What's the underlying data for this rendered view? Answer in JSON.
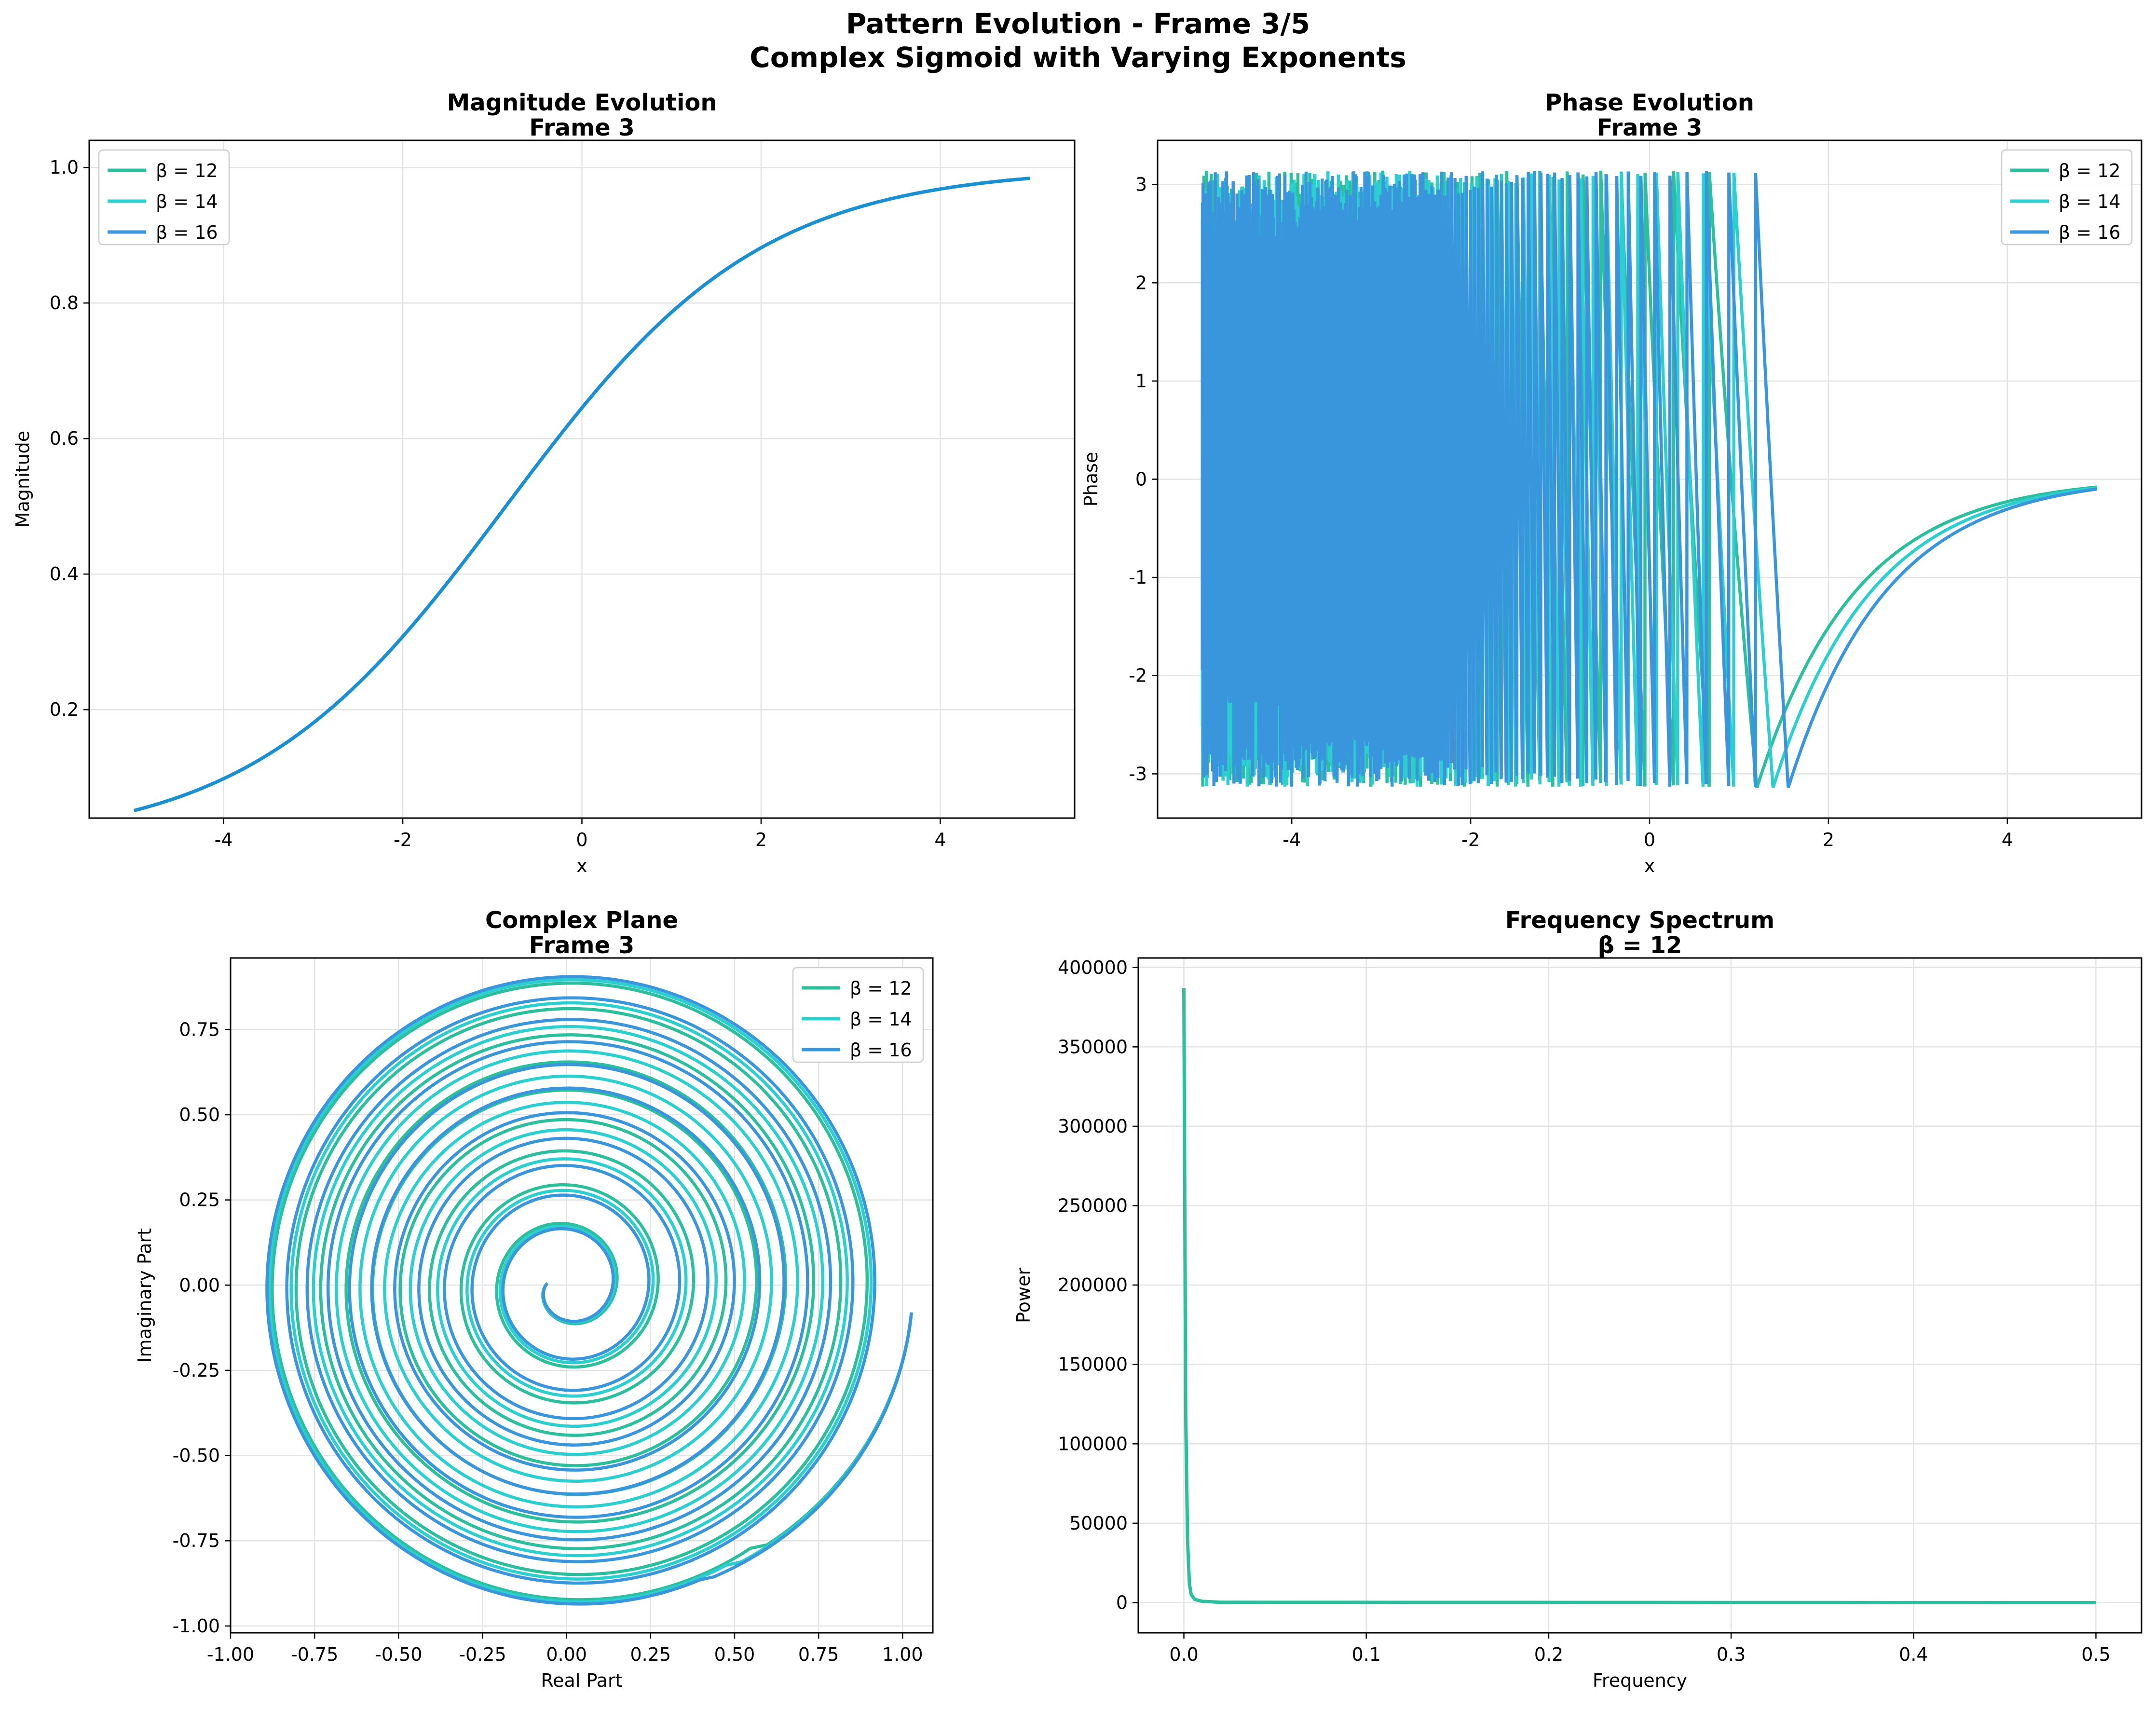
{
  "figure": {
    "title_line1": "Pattern Evolution - Frame 3/5",
    "title_line2": "Complex Sigmoid with Varying Exponents"
  },
  "colors": {
    "beta12": "#2bbf9d",
    "beta14": "#2ccfd0",
    "beta16": "#3a96dc",
    "magnitude": "#1b8fd2",
    "grid": "#e3e3e3",
    "axis": "#000000"
  },
  "legend_labels": [
    "β = 12",
    "β = 14",
    "β = 16"
  ],
  "chart_data": [
    {
      "id": "magnitude",
      "type": "line",
      "title": "Magnitude Evolution",
      "subtitle": "Frame 3",
      "xlabel": "x",
      "ylabel": "Magnitude",
      "xlim": [
        -5.5,
        5.5
      ],
      "ylim": [
        0.04,
        1.04
      ],
      "xticks": [
        -4,
        -2,
        0,
        2,
        4
      ],
      "xtick_labels": [
        "-4",
        "-2",
        "0",
        "2",
        "4"
      ],
      "yticks": [
        0.2,
        0.4,
        0.6,
        0.8,
        1.0
      ],
      "ytick_labels": [
        "0.2",
        "0.4",
        "0.6",
        "0.8",
        "1.0"
      ],
      "grid": true,
      "legend": "top-left",
      "x_range": [
        -5,
        5
      ],
      "series": [
        {
          "name": "β = 12",
          "sigmoid_center": -0.85,
          "sigmoid_scale": 1.42
        },
        {
          "name": "β = 14",
          "sigmoid_center": -0.85,
          "sigmoid_scale": 1.42
        },
        {
          "name": "β = 16",
          "sigmoid_center": -0.85,
          "sigmoid_scale": 1.42
        }
      ]
    },
    {
      "id": "phase",
      "type": "line",
      "title": "Phase Evolution",
      "subtitle": "Frame 3",
      "xlabel": "x",
      "ylabel": "Phase",
      "xlim": [
        -5.5,
        5.5
      ],
      "ylim": [
        -3.45,
        3.45
      ],
      "xticks": [
        -4,
        -2,
        0,
        2,
        4
      ],
      "xtick_labels": [
        "-4",
        "-2",
        "0",
        "2",
        "4"
      ],
      "yticks": [
        -3,
        -2,
        -1,
        0,
        1,
        2,
        3
      ],
      "ytick_labels": [
        "-3",
        "-2",
        "-1",
        "0",
        "1",
        "2",
        "3"
      ],
      "grid": true,
      "legend": "top-right",
      "x_range": [
        -5,
        5
      ],
      "series": [
        {
          "name": "β = 12",
          "wrap_end_x": 1.2,
          "end_value": -0.08
        },
        {
          "name": "β = 14",
          "wrap_end_x": 1.38,
          "end_value": -0.09
        },
        {
          "name": "β = 16",
          "wrap_end_x": 1.55,
          "end_value": -0.1
        }
      ]
    },
    {
      "id": "complex",
      "type": "line",
      "title": "Complex Plane",
      "subtitle": "Frame 3",
      "xlabel": "Real Part",
      "ylabel": "Imaginary Part",
      "xlim": [
        -1.0,
        1.09
      ],
      "ylim": [
        -1.02,
        0.96
      ],
      "xticks": [
        -1.0,
        -0.75,
        -0.5,
        -0.25,
        0.0,
        0.25,
        0.5,
        0.75,
        1.0
      ],
      "xtick_labels": [
        "-1.00",
        "-0.75",
        "-0.50",
        "-0.25",
        "0.00",
        "0.25",
        "0.50",
        "0.75",
        "1.00"
      ],
      "yticks": [
        -1.0,
        -0.75,
        -0.5,
        -0.25,
        0.0,
        0.25,
        0.5,
        0.75
      ],
      "ytick_labels": [
        "-1.00",
        "-0.75",
        "-0.50",
        "-0.25",
        "0.00",
        "0.25",
        "0.50",
        "0.75"
      ],
      "grid": true,
      "legend": "top-right",
      "series": [
        {
          "name": "β = 12",
          "turns": 9.5,
          "outer_radius": 0.94
        },
        {
          "name": "β = 14",
          "turns": 10.5,
          "outer_radius": 0.945
        },
        {
          "name": "β = 16",
          "turns": 11.5,
          "outer_radius": 0.95
        }
      ]
    },
    {
      "id": "spectrum",
      "type": "line",
      "title": "Frequency Spectrum",
      "subtitle": "β = 12",
      "xlabel": "Frequency",
      "ylabel": "Power",
      "xlim": [
        -0.025,
        0.525
      ],
      "ylim": [
        -19000,
        406000
      ],
      "xticks": [
        0.0,
        0.1,
        0.2,
        0.3,
        0.4,
        0.5
      ],
      "xtick_labels": [
        "0.0",
        "0.1",
        "0.2",
        "0.3",
        "0.4",
        "0.5"
      ],
      "yticks": [
        0,
        50000,
        100000,
        150000,
        200000,
        250000,
        300000,
        350000,
        400000
      ],
      "ytick_labels": [
        "0",
        "50000",
        "100000",
        "150000",
        "200000",
        "250000",
        "300000",
        "350000",
        "400000"
      ],
      "grid": true,
      "legend": "none",
      "series": [
        {
          "name": "β = 12",
          "x": [
            0.0,
            0.001,
            0.002,
            0.003,
            0.004,
            0.006,
            0.01,
            0.02,
            0.5
          ],
          "y": [
            387000,
            120000,
            40000,
            12000,
            5000,
            2000,
            800,
            200,
            0
          ]
        }
      ]
    }
  ]
}
